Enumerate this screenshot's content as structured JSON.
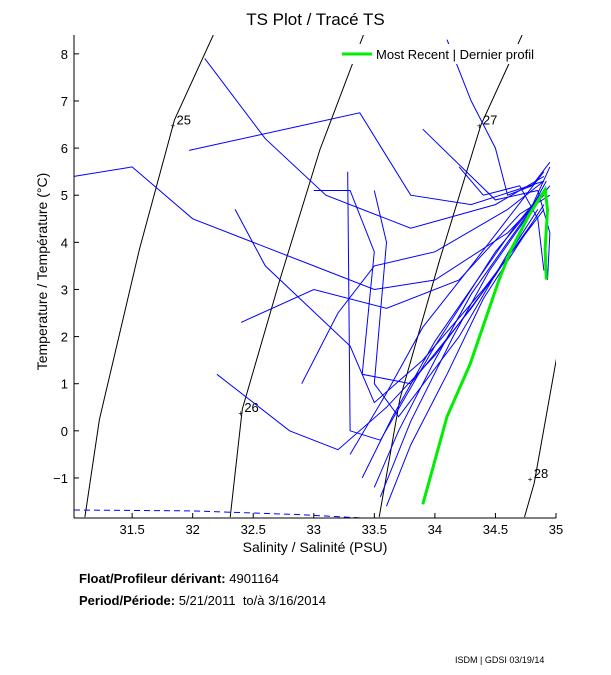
{
  "chart_data": {
    "type": "line",
    "title": "TS Plot / Tracé TS",
    "xlabel": "Salinity / Salinité (PSU)",
    "ylabel": "Temperature / Température (°C)",
    "xlim": [
      31.02,
      35.0
    ],
    "ylim": [
      -1.85,
      8.4
    ],
    "xticks": [
      "31.5",
      "32",
      "32.5",
      "33",
      "33.5",
      "34",
      "34.5",
      "35"
    ],
    "yticks": [
      "-1",
      "0",
      "1",
      "2",
      "3",
      "4",
      "5",
      "6",
      "7",
      "8"
    ],
    "grid": false,
    "legend": {
      "position": "top-right",
      "entries": [
        {
          "label": "Most Recent | Dernier profil",
          "color": "#00ee00"
        }
      ]
    },
    "density_contours": [
      {
        "label": "25",
        "points": [
          [
            32.17,
            8.4
          ],
          [
            31.85,
            6.6
          ],
          [
            31.56,
            3.85
          ],
          [
            31.23,
            0.24
          ],
          [
            31.11,
            -1.83
          ]
        ],
        "label_at": [
          31.85,
          6.5
        ]
      },
      {
        "label": "26",
        "points": [
          [
            33.41,
            8.4
          ],
          [
            33.05,
            5.96
          ],
          [
            32.72,
            3.21
          ],
          [
            32.41,
            0.46
          ],
          [
            32.31,
            -1.83
          ]
        ],
        "label_at": [
          32.41,
          0.4
        ]
      },
      {
        "label": "27",
        "points": [
          [
            34.72,
            8.4
          ],
          [
            34.38,
            6.49
          ],
          [
            34.04,
            3.63
          ],
          [
            33.71,
            0.67
          ],
          [
            33.54,
            -1.83
          ]
        ],
        "label_at": [
          34.38,
          6.5
        ]
      },
      {
        "label": "28",
        "points": [
          [
            35.01,
            1.62
          ],
          [
            34.82,
            -1.11
          ],
          [
            34.74,
            -1.83
          ]
        ],
        "label_at": [
          34.8,
          -1.0
        ]
      }
    ],
    "profiles_color": "#0000ff",
    "profiles": [
      [
        [
          31.02,
          5.4
        ],
        [
          31.5,
          5.6
        ],
        [
          32.0,
          4.5
        ],
        [
          33.0,
          3.5
        ],
        [
          33.5,
          3.0
        ],
        [
          34.0,
          3.2
        ],
        [
          34.6,
          4.2
        ],
        [
          34.9,
          5.0
        ]
      ],
      [
        [
          31.97,
          5.95
        ],
        [
          33.38,
          6.75
        ],
        [
          33.8,
          5.0
        ],
        [
          34.3,
          4.8
        ],
        [
          34.9,
          5.3
        ]
      ],
      [
        [
          32.1,
          7.9
        ],
        [
          32.6,
          6.2
        ],
        [
          33.1,
          5.0
        ],
        [
          33.8,
          4.3
        ],
        [
          34.5,
          4.8
        ],
        [
          34.9,
          5.4
        ]
      ],
      [
        [
          32.35,
          4.7
        ],
        [
          32.6,
          3.5
        ],
        [
          33.3,
          1.8
        ],
        [
          33.5,
          0.6
        ],
        [
          33.9,
          1.5
        ],
        [
          34.4,
          3.0
        ],
        [
          34.9,
          4.7
        ]
      ],
      [
        [
          32.9,
          1.0
        ],
        [
          33.2,
          2.5
        ],
        [
          33.5,
          3.5
        ],
        [
          34.0,
          3.8
        ],
        [
          34.6,
          4.7
        ],
        [
          34.9,
          5.3
        ]
      ],
      [
        [
          33.28,
          5.5
        ],
        [
          33.3,
          0.0
        ],
        [
          33.55,
          -0.2
        ],
        [
          34.0,
          1.8
        ],
        [
          34.5,
          3.8
        ],
        [
          34.95,
          5.2
        ]
      ],
      [
        [
          33.5,
          5.1
        ],
        [
          33.6,
          4.0
        ],
        [
          33.5,
          1.0
        ],
        [
          33.7,
          0.3
        ],
        [
          34.2,
          2.0
        ],
        [
          34.7,
          4.2
        ],
        [
          34.95,
          5.6
        ]
      ],
      [
        [
          34.1,
          8.3
        ],
        [
          34.3,
          7.0
        ],
        [
          34.5,
          6.0
        ],
        [
          34.6,
          5.0
        ],
        [
          34.8,
          5.2
        ],
        [
          34.95,
          5.7
        ]
      ],
      [
        [
          33.6,
          -1.6
        ],
        [
          33.8,
          -0.3
        ],
        [
          34.1,
          1.2
        ],
        [
          34.4,
          2.8
        ],
        [
          34.7,
          4.0
        ],
        [
          34.9,
          4.8
        ]
      ],
      [
        [
          33.5,
          -1.2
        ],
        [
          33.7,
          0.0
        ],
        [
          34.0,
          1.5
        ],
        [
          34.3,
          2.9
        ],
        [
          34.6,
          4.0
        ],
        [
          34.85,
          4.9
        ]
      ],
      [
        [
          33.4,
          -1.0
        ],
        [
          33.65,
          0.3
        ],
        [
          34.0,
          1.9
        ],
        [
          34.35,
          3.2
        ],
        [
          34.65,
          4.3
        ],
        [
          34.9,
          5.1
        ]
      ],
      [
        [
          33.55,
          -1.4
        ],
        [
          33.8,
          0.2
        ],
        [
          34.15,
          2.0
        ],
        [
          34.45,
          3.4
        ],
        [
          34.75,
          4.5
        ],
        [
          34.92,
          5.3
        ]
      ],
      [
        [
          33.3,
          -0.5
        ],
        [
          33.6,
          0.8
        ],
        [
          33.9,
          2.2
        ],
        [
          34.3,
          3.5
        ],
        [
          34.6,
          4.5
        ],
        [
          34.9,
          5.5
        ]
      ],
      [
        [
          32.4,
          2.3
        ],
        [
          33.0,
          3.0
        ],
        [
          33.6,
          2.6
        ],
        [
          34.2,
          3.2
        ],
        [
          34.7,
          4.6
        ],
        [
          34.95,
          5.0
        ]
      ],
      [
        [
          33.0,
          5.1
        ],
        [
          33.3,
          5.1
        ],
        [
          33.5,
          3.8
        ],
        [
          33.4,
          1.2
        ],
        [
          33.8,
          1.0
        ],
        [
          34.3,
          2.6
        ],
        [
          34.8,
          4.4
        ]
      ],
      [
        [
          33.9,
          6.4
        ],
        [
          34.3,
          5.4
        ],
        [
          34.5,
          4.9
        ],
        [
          34.85,
          5.1
        ],
        [
          34.95,
          4.2
        ],
        [
          34.93,
          3.2
        ]
      ],
      [
        [
          32.2,
          1.2
        ],
        [
          32.8,
          0.0
        ],
        [
          33.2,
          -0.4
        ],
        [
          33.6,
          0.5
        ],
        [
          34.0,
          1.6
        ],
        [
          34.5,
          3.3
        ],
        [
          34.85,
          4.7
        ]
      ],
      [
        [
          34.2,
          5.6
        ],
        [
          34.4,
          5.0
        ],
        [
          34.7,
          5.2
        ],
        [
          34.85,
          4.5
        ],
        [
          34.9,
          3.4
        ]
      ]
    ],
    "reference_dashed": [
      [
        31.02,
        -1.68
      ],
      [
        32.0,
        -1.7
      ],
      [
        32.9,
        -1.78
      ],
      [
        33.4,
        -1.85
      ]
    ],
    "most_recent": [
      [
        33.9,
        -1.56
      ],
      [
        34.1,
        0.3
      ],
      [
        34.29,
        1.41
      ],
      [
        34.53,
        3.21
      ],
      [
        34.63,
        3.85
      ],
      [
        34.78,
        4.59
      ],
      [
        34.91,
        5.12
      ],
      [
        34.93,
        4.69
      ],
      [
        34.91,
        3.85
      ],
      [
        34.92,
        3.21
      ]
    ]
  },
  "info": {
    "float_label": "Float/Profileur dérivant:",
    "float_id": "4901164",
    "period_label": "Period/Période:",
    "period_start": "5/21/2011",
    "period_to": "to/à",
    "period_end": "3/16/2014"
  },
  "footer": "ISDM | GDSI 03/19/14"
}
